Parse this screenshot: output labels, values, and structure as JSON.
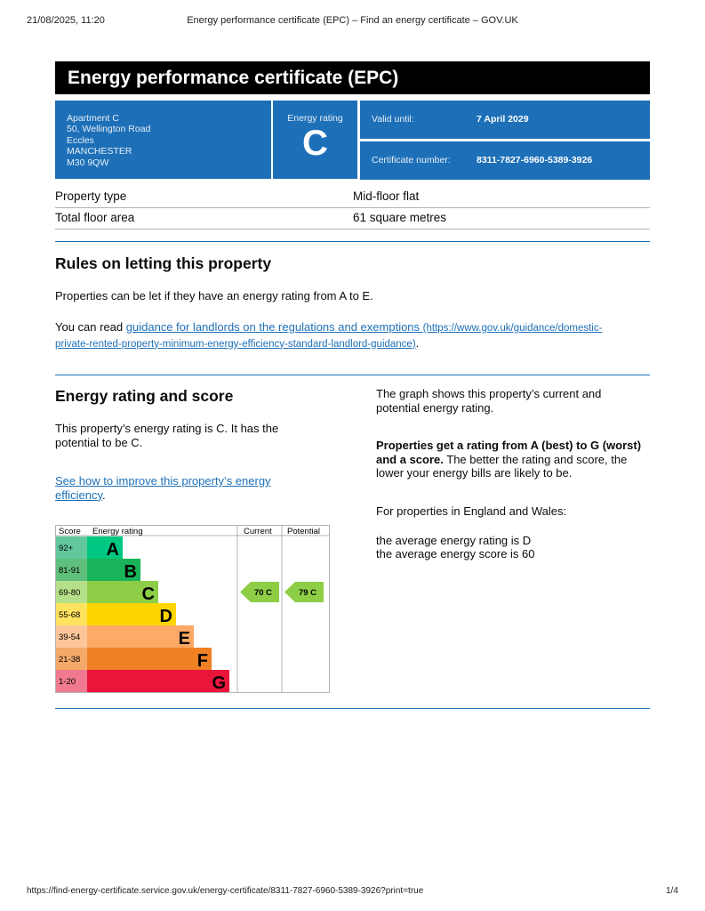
{
  "browser": {
    "datetime": "21/08/2025, 11:20",
    "page_title": "Energy performance certificate (EPC) – Find an energy certificate – GOV.UK",
    "url": "https://find-energy-certificate.service.gov.uk/energy-certificate/8311-7827-6960-5389-3926?print=true",
    "page_count": "1/4"
  },
  "header": {
    "title": "Energy performance certificate (EPC)"
  },
  "summary": {
    "address": [
      "Apartment C",
      "50, Wellington Road",
      "Eccles",
      "MANCHESTER",
      "M30 9QW"
    ],
    "rating_label": "Energy rating",
    "rating": "C",
    "valid_label": "Valid until:",
    "valid_value": "7 April 2029",
    "cert_label": "Certificate number:",
    "cert_value": "8311-7827-6960-5389-3926"
  },
  "details": [
    {
      "label": "Property type",
      "value": "Mid-floor flat"
    },
    {
      "label": "Total floor area",
      "value": "61 square metres"
    }
  ],
  "letting": {
    "heading": "Rules on letting this property",
    "p1": "Properties can be let if they have an energy rating from A to E.",
    "p2_prefix": "You can read ",
    "link": "guidance for landlords on the regulations and exemptions",
    "link_url_line1": "(https://www.gov.uk/guidance/domestic-",
    "link_url_line2": "private-rented-property-minimum-energy-efficiency-standard-landlord-guidance)",
    "p2_suffix": "."
  },
  "energy": {
    "heading": "Energy rating and score",
    "p1": "This property’s energy rating is C. It has the potential to be C.",
    "link": "See how to improve this property’s energy efficiency",
    "link_suffix": ".",
    "right_p1": "The graph shows this property’s current and potential energy rating.",
    "right_p2_bold": "Properties get a rating from A (best) to G (worst) and a score.",
    "right_p2_rest": " The better the rating and score, the lower your energy bills are likely to be.",
    "right_p3": "For properties in England and Wales:",
    "right_p4": "the average energy rating is D",
    "right_p5": "the average energy score is 60"
  },
  "chart_data": {
    "type": "table",
    "headers": [
      "Score",
      "Energy rating",
      "Current",
      "Potential"
    ],
    "bands": [
      {
        "score": "92+",
        "letter": "A",
        "color": "#00c781",
        "score_bg": "#63c79e"
      },
      {
        "score": "81-91",
        "letter": "B",
        "color": "#19b459",
        "score_bg": "#5fbf7c"
      },
      {
        "score": "69-80",
        "letter": "C",
        "color": "#8dce46",
        "score_bg": "#b5df88"
      },
      {
        "score": "55-68",
        "letter": "D",
        "color": "#ffd500",
        "score_bg": "#ffe35f"
      },
      {
        "score": "39-54",
        "letter": "E",
        "color": "#fcaa65",
        "score_bg": "#fdc79a"
      },
      {
        "score": "21-38",
        "letter": "F",
        "color": "#ef8023",
        "score_bg": "#f4a96a"
      },
      {
        "score": "1-20",
        "letter": "G",
        "color": "#e9153b",
        "score_bg": "#f07a8f"
      }
    ],
    "current": {
      "score": 70,
      "band": "C",
      "label": "70  C"
    },
    "potential": {
      "score": 79,
      "band": "C",
      "label": "79  C"
    }
  }
}
